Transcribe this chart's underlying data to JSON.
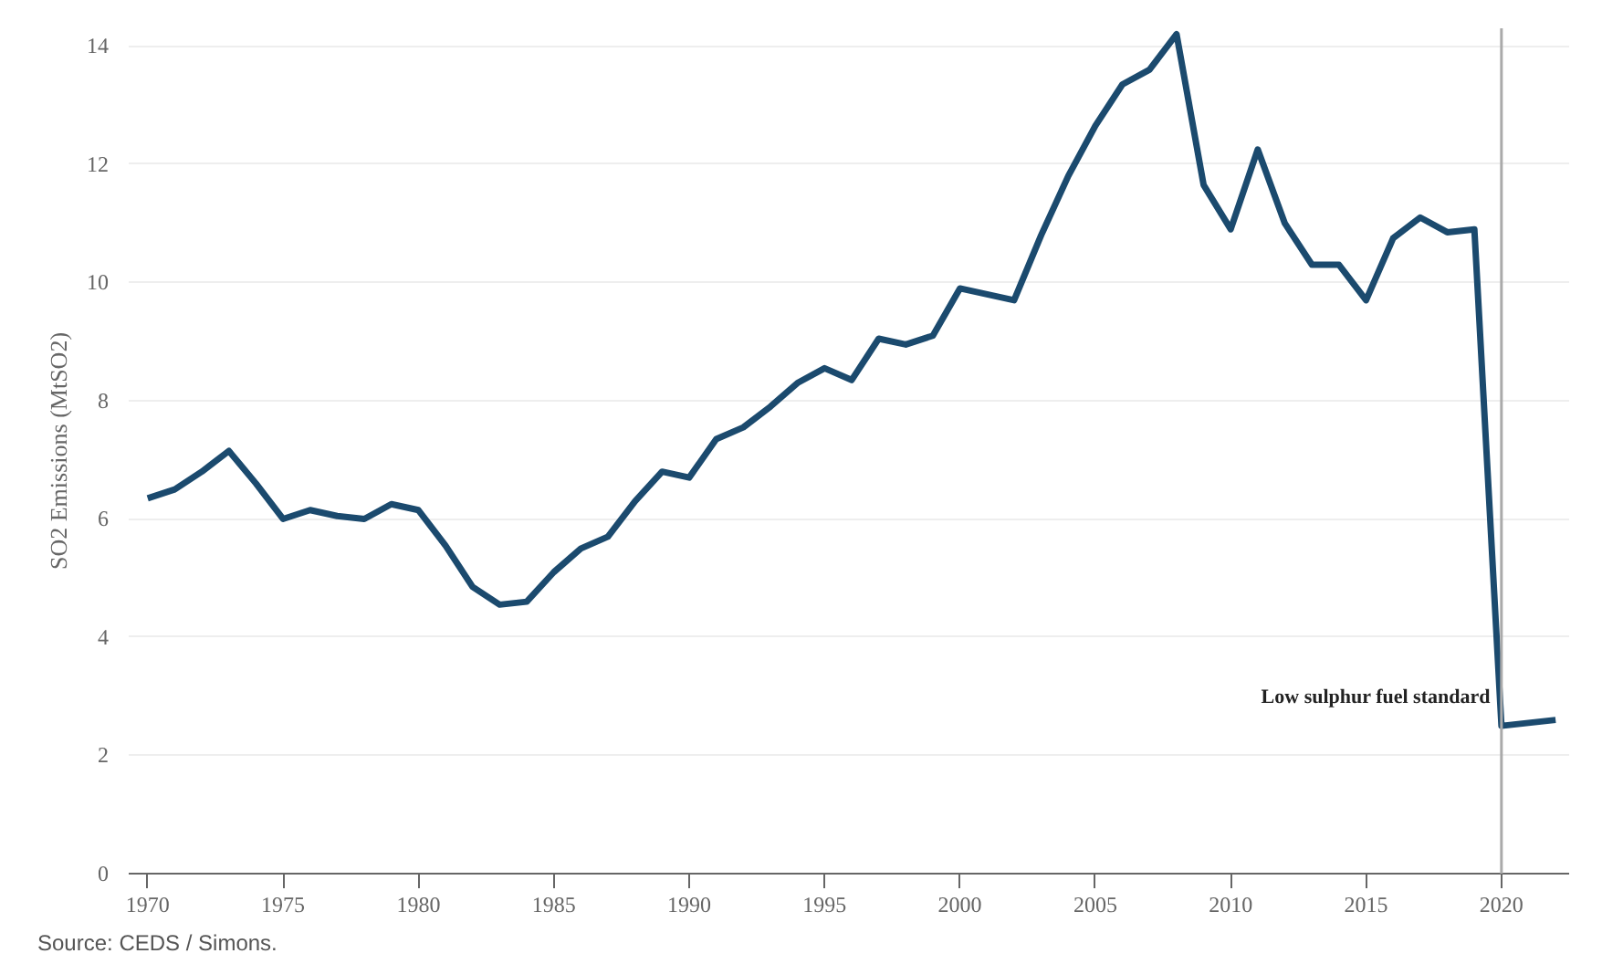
{
  "chart_data": {
    "type": "line",
    "ylabel": "SO2 Emissions (MtSO2)",
    "x": [
      1970,
      1971,
      1972,
      1973,
      1974,
      1975,
      1976,
      1977,
      1978,
      1979,
      1980,
      1981,
      1982,
      1983,
      1984,
      1985,
      1986,
      1987,
      1988,
      1989,
      1990,
      1991,
      1992,
      1993,
      1994,
      1995,
      1996,
      1997,
      1998,
      1999,
      2000,
      2001,
      2002,
      2003,
      2004,
      2005,
      2006,
      2007,
      2008,
      2009,
      2010,
      2011,
      2012,
      2013,
      2014,
      2015,
      2016,
      2017,
      2018,
      2019,
      2020,
      2021,
      2022
    ],
    "series": [
      {
        "color": "#1b4a6e",
        "values": [
          6.35,
          6.5,
          6.8,
          7.15,
          6.6,
          6.0,
          6.15,
          6.05,
          6.0,
          6.25,
          6.15,
          5.55,
          4.85,
          4.55,
          4.6,
          5.1,
          5.5,
          5.7,
          6.3,
          6.8,
          6.7,
          7.35,
          7.55,
          7.9,
          8.3,
          8.55,
          8.35,
          9.05,
          8.95,
          9.1,
          9.9,
          9.8,
          9.7,
          10.8,
          11.8,
          12.65,
          13.35,
          13.6,
          14.2,
          11.65,
          10.9,
          12.25,
          11.0,
          10.3,
          10.3,
          9.7,
          10.75,
          11.1,
          10.85,
          10.9,
          2.5,
          2.55,
          2.6
        ]
      }
    ],
    "xlim": [
      1969.3,
      2022.5
    ],
    "ylim": [
      0,
      14.3
    ],
    "xticks": [
      1970,
      1975,
      1980,
      1985,
      1990,
      1995,
      2000,
      2005,
      2010,
      2015,
      2020
    ],
    "yticks": [
      0,
      2,
      4,
      6,
      8,
      10,
      12,
      14
    ],
    "grid": "y",
    "marker": "none",
    "line_style": "solid",
    "ref_lines": [
      {
        "axis": "x",
        "value": 2020,
        "label": "Low sulphur fuel standard",
        "color": "#aaaaaa"
      }
    ],
    "annotations": [
      "Source: CEDS / Simons."
    ]
  }
}
